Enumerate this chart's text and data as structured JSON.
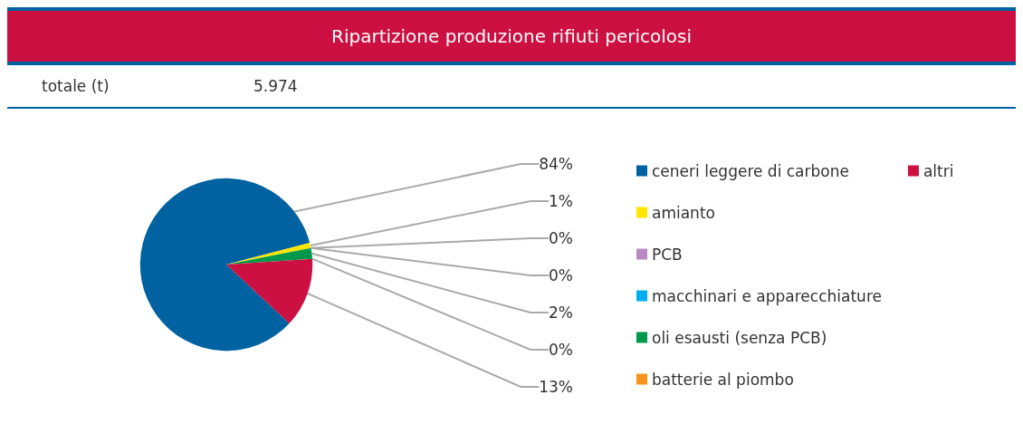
{
  "chart_data": {
    "type": "pie",
    "title": "Ripartizione produzione rifiuti pericolosi",
    "subtitle": "totale (t)",
    "annotations": [
      "5.974"
    ],
    "categories": [
      "ceneri leggere di carbone",
      "amianto",
      "PCB",
      "macchinari e apparecchiature",
      "oli esausti (senza PCB)",
      "batterie al piombo",
      "altri"
    ],
    "values": [
      84,
      1,
      0,
      0,
      2,
      0,
      13
    ],
    "colors": [
      "#0062a1",
      "#ffe500",
      "#b98ac2",
      "#00aeef",
      "#00984a",
      "#f7941d",
      "#cc1041"
    ],
    "value_labels": [
      "84%",
      "1%",
      "0%",
      "0%",
      "2%",
      "0%",
      "13%"
    ],
    "legend": "right"
  }
}
